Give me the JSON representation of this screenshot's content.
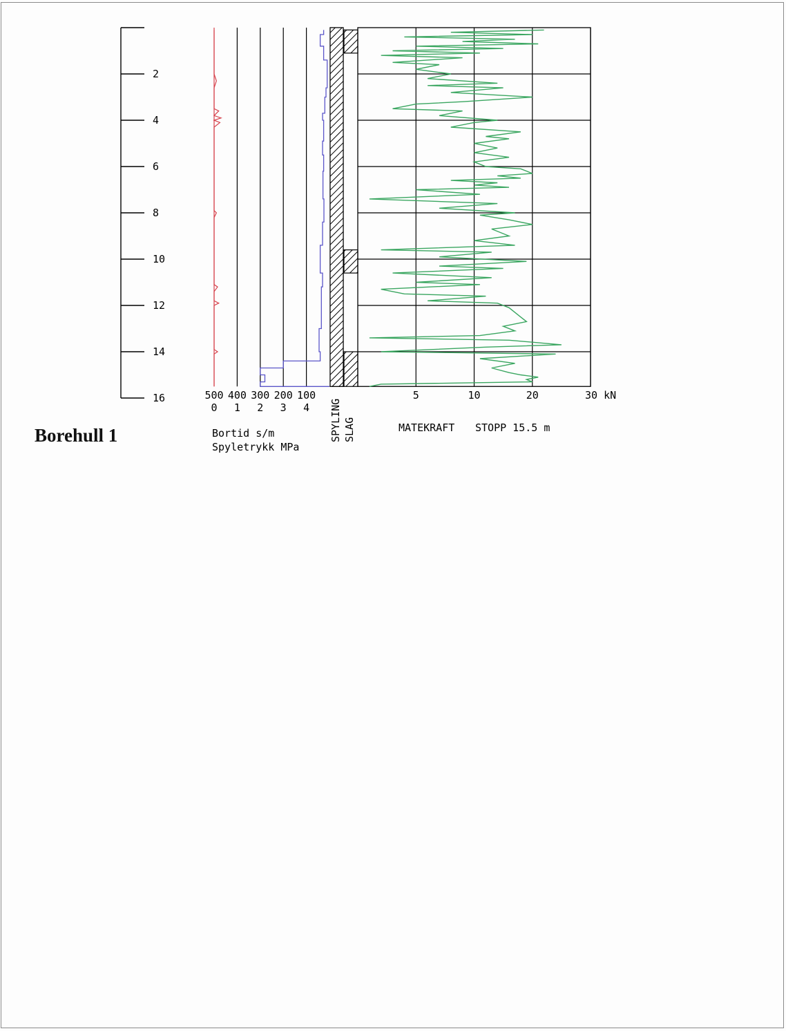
{
  "page_title": "Borehull 1",
  "chart_data": {
    "type": "line",
    "depth_axis": {
      "ticks": [
        2,
        4,
        6,
        8,
        10,
        12,
        14,
        16
      ],
      "range": [
        0,
        16
      ],
      "unit": "m"
    },
    "bortid": {
      "label": "Bortid s/m",
      "ticks": [
        500,
        400,
        300,
        200,
        100
      ],
      "range_reversed": [
        500,
        0
      ],
      "color": "#5a55c9",
      "points": [
        [
          0.1,
          25
        ],
        [
          0.3,
          25
        ],
        [
          0.3,
          40
        ],
        [
          0.8,
          40
        ],
        [
          0.8,
          25
        ],
        [
          1.4,
          25
        ],
        [
          1.4,
          10
        ],
        [
          2.6,
          10
        ],
        [
          2.6,
          15
        ],
        [
          3.0,
          15
        ],
        [
          3.0,
          20
        ],
        [
          3.7,
          20
        ],
        [
          3.7,
          30
        ],
        [
          4.0,
          30
        ],
        [
          4.0,
          25
        ],
        [
          4.9,
          25
        ],
        [
          4.9,
          30
        ],
        [
          5.5,
          30
        ],
        [
          5.5,
          25
        ],
        [
          6.2,
          25
        ],
        [
          6.2,
          28
        ],
        [
          7.4,
          28
        ],
        [
          7.4,
          24
        ],
        [
          8.4,
          24
        ],
        [
          8.4,
          30
        ],
        [
          9.4,
          30
        ],
        [
          9.4,
          40
        ],
        [
          10.6,
          40
        ],
        [
          10.6,
          30
        ],
        [
          11.2,
          30
        ],
        [
          11.2,
          35
        ],
        [
          13.0,
          35
        ],
        [
          13.0,
          45
        ],
        [
          14.0,
          45
        ],
        [
          14.0,
          40
        ],
        [
          14.4,
          40
        ],
        [
          14.4,
          200
        ],
        [
          14.7,
          200
        ],
        [
          14.7,
          300
        ],
        [
          15.0,
          300
        ],
        [
          15.0,
          280
        ],
        [
          15.3,
          280
        ],
        [
          15.3,
          300
        ],
        [
          15.5,
          300
        ],
        [
          15.5,
          0
        ]
      ]
    },
    "spyletrykk": {
      "label": "Spyletrykk MPa",
      "ticks": [
        0,
        1,
        2,
        3,
        4
      ],
      "range": [
        0,
        5
      ],
      "color": "#d6404a",
      "points": [
        [
          0.1,
          0.0
        ],
        [
          2.0,
          0.0
        ],
        [
          2.3,
          0.1
        ],
        [
          2.6,
          0.0
        ],
        [
          3.5,
          0.0
        ],
        [
          3.6,
          0.2
        ],
        [
          3.8,
          0.0
        ],
        [
          3.9,
          0.3
        ],
        [
          4.0,
          0.0
        ],
        [
          4.1,
          0.25
        ],
        [
          4.3,
          0.0
        ],
        [
          7.9,
          0.0
        ],
        [
          8.0,
          0.1
        ],
        [
          8.2,
          0.0
        ],
        [
          11.1,
          0.0
        ],
        [
          11.2,
          0.15
        ],
        [
          11.4,
          0.0
        ],
        [
          11.8,
          0.0
        ],
        [
          11.9,
          0.2
        ],
        [
          12.0,
          0.0
        ],
        [
          13.9,
          0.0
        ],
        [
          14.0,
          0.15
        ],
        [
          14.1,
          0.0
        ],
        [
          15.5,
          0.0
        ]
      ]
    },
    "strip_labels": [
      "SPYLING",
      "SLAG"
    ],
    "spyling": {
      "intervals": [
        [
          0,
          15.5
        ]
      ]
    },
    "slag": {
      "intervals": [
        [
          0.1,
          1.1
        ],
        [
          9.6,
          10.6
        ],
        [
          14.0,
          15.5
        ]
      ]
    },
    "matekraft": {
      "label": "MATEKRAFT",
      "stop_label": "STOPP 15.5 m",
      "axis_ticks": [
        "5",
        "10",
        "20",
        "30 kN"
      ],
      "tick_values": [
        5,
        10,
        20,
        30
      ],
      "xlim": [
        0,
        30
      ],
      "color": "#3aa660",
      "points": [
        [
          0.1,
          22
        ],
        [
          0.2,
          8
        ],
        [
          0.3,
          20
        ],
        [
          0.4,
          4
        ],
        [
          0.5,
          17
        ],
        [
          0.6,
          9
        ],
        [
          0.7,
          21
        ],
        [
          0.8,
          5
        ],
        [
          0.9,
          15
        ],
        [
          1.0,
          3
        ],
        [
          1.1,
          11
        ],
        [
          1.2,
          2
        ],
        [
          1.3,
          9
        ],
        [
          1.5,
          3
        ],
        [
          1.6,
          7
        ],
        [
          1.8,
          5
        ],
        [
          2.0,
          8
        ],
        [
          2.2,
          6
        ],
        [
          2.4,
          14
        ],
        [
          2.5,
          6
        ],
        [
          2.6,
          15
        ],
        [
          2.8,
          8
        ],
        [
          3.0,
          20
        ],
        [
          3.2,
          9
        ],
        [
          3.3,
          5
        ],
        [
          3.5,
          3
        ],
        [
          3.6,
          9
        ],
        [
          3.8,
          7
        ],
        [
          4.0,
          14
        ],
        [
          4.1,
          10
        ],
        [
          4.3,
          8
        ],
        [
          4.5,
          18
        ],
        [
          4.7,
          12
        ],
        [
          4.8,
          16
        ],
        [
          5.0,
          10
        ],
        [
          5.2,
          14
        ],
        [
          5.4,
          10
        ],
        [
          5.6,
          16
        ],
        [
          5.8,
          10
        ],
        [
          6.0,
          12
        ],
        [
          6.1,
          18
        ],
        [
          6.3,
          20
        ],
        [
          6.4,
          14
        ],
        [
          6.5,
          18
        ],
        [
          6.6,
          8
        ],
        [
          6.7,
          14
        ],
        [
          6.8,
          10
        ],
        [
          6.9,
          16
        ],
        [
          7.0,
          5
        ],
        [
          7.2,
          11
        ],
        [
          7.4,
          1
        ],
        [
          7.6,
          14
        ],
        [
          7.8,
          7
        ],
        [
          8.0,
          17
        ],
        [
          8.1,
          11
        ],
        [
          8.3,
          16
        ],
        [
          8.5,
          20
        ],
        [
          8.7,
          13
        ],
        [
          9.0,
          16
        ],
        [
          9.2,
          10
        ],
        [
          9.4,
          17
        ],
        [
          9.6,
          2
        ],
        [
          9.7,
          13
        ],
        [
          9.9,
          7
        ],
        [
          10.1,
          19
        ],
        [
          10.3,
          7
        ],
        [
          10.4,
          15
        ],
        [
          10.6,
          3
        ],
        [
          10.8,
          13
        ],
        [
          11.0,
          5
        ],
        [
          11.1,
          11
        ],
        [
          11.3,
          2
        ],
        [
          11.5,
          4
        ],
        [
          11.6,
          12
        ],
        [
          11.8,
          6
        ],
        [
          11.9,
          14
        ],
        [
          12.1,
          16
        ],
        [
          12.3,
          17
        ],
        [
          12.5,
          18
        ],
        [
          12.7,
          19
        ],
        [
          12.9,
          15
        ],
        [
          13.1,
          17
        ],
        [
          13.3,
          11
        ],
        [
          13.4,
          1
        ],
        [
          13.5,
          16
        ],
        [
          13.7,
          25
        ],
        [
          13.8,
          12
        ],
        [
          14.0,
          2
        ],
        [
          14.1,
          24
        ],
        [
          14.3,
          11
        ],
        [
          14.5,
          17
        ],
        [
          14.7,
          13
        ],
        [
          14.9,
          16
        ],
        [
          15.0,
          18
        ],
        [
          15.1,
          21
        ],
        [
          15.2,
          19
        ],
        [
          15.3,
          20
        ],
        [
          15.4,
          2
        ],
        [
          15.5,
          1
        ]
      ]
    }
  }
}
